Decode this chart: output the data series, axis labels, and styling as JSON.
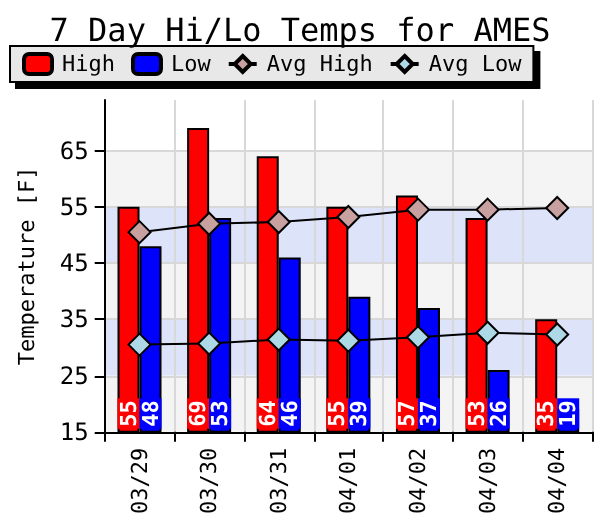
{
  "chart_data": {
    "type": "bar",
    "title": "7 Day Hi/Lo Temps for AMES",
    "ylabel": "Temperature [F]",
    "categories": [
      "03/29",
      "03/30",
      "03/31",
      "04/01",
      "04/02",
      "04/03",
      "04/04"
    ],
    "series": [
      {
        "name": "High",
        "color": "#ff0000",
        "values": [
          55,
          69,
          64,
          55,
          57,
          53,
          35
        ],
        "value_labels": [
          "55",
          "69",
          "64",
          "55",
          "57",
          "53",
          "35"
        ]
      },
      {
        "name": "Low",
        "color": "#0000ff",
        "values": [
          48,
          53,
          46,
          39,
          37,
          26,
          19
        ],
        "value_labels": [
          "48",
          "53",
          "46",
          "39",
          "37",
          "26",
          "19"
        ]
      },
      {
        "name": "Avg High",
        "type": "line",
        "color": "#c8a0a0",
        "marker": "diamond",
        "values": [
          50.5,
          52,
          52.3,
          53.2,
          54.5,
          54.5,
          54.8
        ]
      },
      {
        "name": "Avg Low",
        "type": "line",
        "color": "#add8e6",
        "marker": "diamond",
        "values": [
          30.5,
          30.7,
          31.4,
          31.2,
          31.8,
          32.6,
          32.3
        ]
      }
    ],
    "ylim": [
      15,
      74
    ],
    "yticks": [
      15,
      25,
      35,
      45,
      55,
      65
    ],
    "grid": true,
    "legend": "top"
  }
}
